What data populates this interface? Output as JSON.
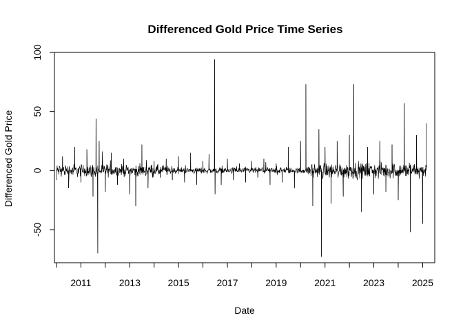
{
  "chart_data": {
    "type": "line",
    "title": "Differenced Gold Price Time Series",
    "xlabel": "Date",
    "ylabel": "Differenced Gold Price",
    "xlim": [
      "2009-12-01",
      "2025-07-01"
    ],
    "ylim": [
      -78,
      100
    ],
    "x_ticks": [
      "2010",
      "2011",
      "2012",
      "2013",
      "2014",
      "2015",
      "2016",
      "2017",
      "2018",
      "2019",
      "2020",
      "2021",
      "2022",
      "2023",
      "2024",
      "2025"
    ],
    "x_tick_labels": [
      "",
      "2011",
      "",
      "2013",
      "",
      "2015",
      "",
      "2017",
      "",
      "2019",
      "",
      "2021",
      "",
      "2023",
      "",
      "2025"
    ],
    "y_ticks": [
      -50,
      0,
      50,
      100
    ],
    "y_tick_labels": [
      "-50",
      "0",
      "50",
      "100"
    ],
    "grid": false,
    "legend": "none",
    "series": [
      {
        "x": [
          "2010-01-01",
          "2010-04-01",
          "2010-07-01",
          "2010-10-01",
          "2011-01-01",
          "2011-04-01",
          "2011-07-01",
          "2011-08-15",
          "2011-09-10",
          "2011-10-01",
          "2012-01-01",
          "2012-04-01",
          "2012-07-01",
          "2012-10-01",
          "2013-01-01",
          "2013-04-01",
          "2013-07-01",
          "2013-10-01",
          "2014-01-01",
          "2014-04-01",
          "2014-07-01",
          "2014-10-01",
          "2015-01-01",
          "2015-04-01",
          "2015-07-01",
          "2015-10-01",
          "2016-01-01",
          "2016-04-01",
          "2016-06-24",
          "2016-07-01",
          "2016-10-01",
          "2017-01-01",
          "2017-04-01",
          "2017-07-01",
          "2017-10-01",
          "2018-01-01",
          "2018-04-01",
          "2018-07-01",
          "2018-10-01",
          "2019-01-01",
          "2019-04-01",
          "2019-07-01",
          "2019-10-01",
          "2020-01-01",
          "2020-03-20",
          "2020-07-01",
          "2020-10-01",
          "2020-11-09",
          "2021-01-01",
          "2021-04-01",
          "2021-07-01",
          "2021-10-01",
          "2022-01-01",
          "2022-03-08",
          "2022-07-01",
          "2022-10-01",
          "2023-01-01",
          "2023-04-01",
          "2023-07-01",
          "2023-10-01",
          "2024-01-01",
          "2024-04-01",
          "2024-07-01",
          "2024-10-01",
          "2025-01-01",
          "2025-03-01"
        ],
        "values": [
          -8,
          12,
          -15,
          20,
          -10,
          18,
          -22,
          44,
          -70,
          25,
          -18,
          15,
          -12,
          10,
          -20,
          -30,
          22,
          -15,
          8,
          -6,
          10,
          -8,
          12,
          -10,
          15,
          -12,
          8,
          14,
          94,
          -20,
          -12,
          10,
          -8,
          6,
          -10,
          8,
          -6,
          10,
          -12,
          6,
          -10,
          20,
          -15,
          25,
          73,
          -30,
          35,
          -73,
          20,
          -28,
          25,
          -22,
          30,
          73,
          -35,
          20,
          -20,
          25,
          -18,
          22,
          -25,
          57,
          -52,
          30,
          -45,
          40
        ]
      }
    ]
  }
}
